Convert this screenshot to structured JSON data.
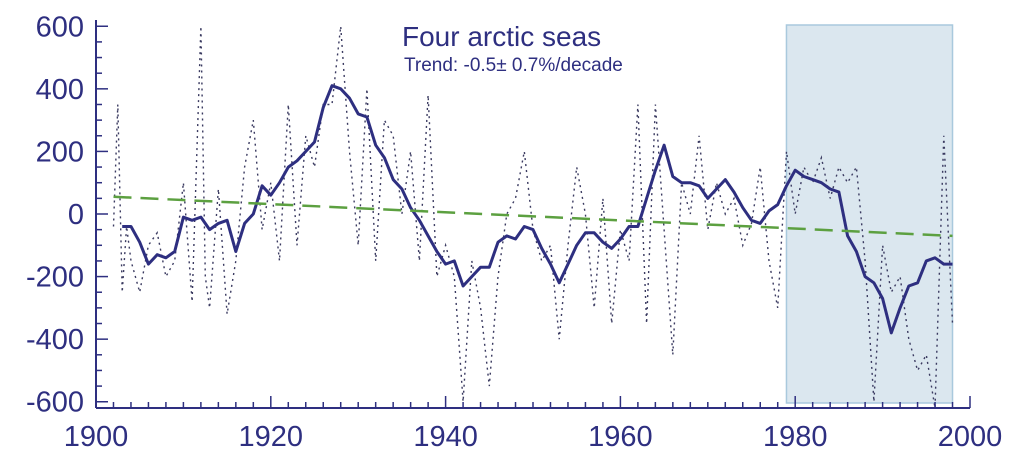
{
  "chart_data": {
    "type": "line",
    "title": "Four arctic seas",
    "subtitle": "Trend: -0.5± 0.7%/decade",
    "xlabel": "",
    "ylabel": "",
    "xlim": [
      1900,
      2000
    ],
    "ylim": [
      -620,
      620
    ],
    "x_ticks": [
      1900,
      1920,
      1940,
      1960,
      1980,
      2000
    ],
    "x_tick_labels": [
      "1900",
      "1920",
      "1940",
      "1960",
      "1980",
      "2000"
    ],
    "y_ticks": [
      600,
      400,
      200,
      0,
      -200,
      -400,
      -600
    ],
    "y_tick_labels": [
      "600",
      "400",
      "200",
      "0",
      "-200",
      "-400",
      "-600"
    ],
    "grid": false,
    "highlight_region": {
      "x": [
        1979,
        1998
      ],
      "color": "#dbe7ef"
    },
    "colors": {
      "axis": "#2e2f80",
      "smoothed": "#2e2f80",
      "annual": "#3a3a60",
      "trend": "#5ca040"
    },
    "series": [
      {
        "style": "dotted",
        "x": [
          1902,
          1902.5,
          1903,
          1903.5,
          1904,
          1905,
          1906,
          1907,
          1908,
          1909,
          1910,
          1911,
          1912,
          1912.5,
          1913,
          1914,
          1915,
          1916,
          1917,
          1918,
          1919,
          1920,
          1921,
          1922,
          1923,
          1924,
          1925,
          1926,
          1927,
          1928,
          1929,
          1930,
          1931,
          1932,
          1933,
          1934,
          1935,
          1936,
          1937,
          1938,
          1939,
          1940,
          1941,
          1942,
          1943,
          1944,
          1945,
          1946,
          1947,
          1948,
          1949,
          1950,
          1951,
          1952,
          1953,
          1954,
          1955,
          1956,
          1957,
          1958,
          1959,
          1960,
          1961,
          1962,
          1963,
          1964,
          1965,
          1966,
          1967,
          1968,
          1969,
          1970,
          1971,
          1972,
          1973,
          1974,
          1975,
          1976,
          1977,
          1978,
          1979,
          1980,
          1981,
          1982,
          1983,
          1984,
          1985,
          1986,
          1987,
          1988,
          1989,
          1990,
          1991,
          1992,
          1993,
          1994,
          1995,
          1996,
          1997,
          1998
        ],
        "values": [
          -40,
          350,
          -250,
          -40,
          -150,
          -250,
          -100,
          -60,
          -200,
          -150,
          100,
          -280,
          600,
          -200,
          -300,
          80,
          -320,
          -150,
          150,
          300,
          -50,
          100,
          -150,
          350,
          -100,
          250,
          150,
          350,
          350,
          600,
          200,
          -100,
          400,
          -150,
          300,
          250,
          0,
          200,
          -150,
          380,
          -200,
          -100,
          -200,
          -600,
          -150,
          -300,
          -550,
          -200,
          0,
          50,
          200,
          -50,
          -150,
          -100,
          -400,
          -100,
          150,
          0,
          -300,
          50,
          -350,
          -50,
          -150,
          350,
          -350,
          350,
          -50,
          -450,
          100,
          0,
          250,
          -50,
          100,
          0,
          50,
          -100,
          -30,
          150,
          -150,
          -300,
          200,
          0,
          150,
          100,
          180,
          50,
          150,
          100,
          150,
          -150,
          -600,
          -100,
          -250,
          -200,
          -400,
          -500,
          -450,
          -650,
          250,
          -350
        ]
      },
      {
        "style": "solid",
        "x": [
          1903,
          1904,
          1905,
          1906,
          1907,
          1908,
          1909,
          1910,
          1911,
          1912,
          1913,
          1914,
          1915,
          1916,
          1917,
          1918,
          1919,
          1920,
          1921,
          1922,
          1923,
          1924,
          1925,
          1926,
          1927,
          1928,
          1929,
          1930,
          1931,
          1932,
          1933,
          1934,
          1935,
          1936,
          1937,
          1938,
          1939,
          1940,
          1941,
          1942,
          1943,
          1944,
          1945,
          1946,
          1947,
          1948,
          1949,
          1950,
          1951,
          1952,
          1953,
          1954,
          1955,
          1956,
          1957,
          1958,
          1959,
          1960,
          1961,
          1962,
          1963,
          1964,
          1965,
          1966,
          1967,
          1968,
          1969,
          1970,
          1971,
          1972,
          1973,
          1974,
          1975,
          1976,
          1977,
          1978,
          1979,
          1980,
          1981,
          1982,
          1983,
          1984,
          1985,
          1986,
          1987,
          1988,
          1989,
          1990,
          1991,
          1992,
          1993,
          1994,
          1995,
          1996,
          1997,
          1998
        ],
        "values": [
          -40,
          -40,
          -90,
          -160,
          -130,
          -140,
          -120,
          -10,
          -20,
          -10,
          -50,
          -30,
          -20,
          -120,
          -30,
          0,
          90,
          60,
          100,
          150,
          170,
          200,
          230,
          340,
          410,
          400,
          370,
          320,
          310,
          220,
          180,
          110,
          80,
          20,
          -20,
          -70,
          -120,
          -160,
          -150,
          -230,
          -200,
          -170,
          -170,
          -90,
          -70,
          -80,
          -40,
          -50,
          -110,
          -160,
          -220,
          -160,
          -100,
          -60,
          -60,
          -90,
          -110,
          -80,
          -40,
          -40,
          50,
          140,
          220,
          120,
          100,
          100,
          90,
          50,
          80,
          110,
          70,
          20,
          -20,
          -30,
          10,
          30,
          90,
          140,
          120,
          110,
          100,
          80,
          70,
          -70,
          -120,
          -200,
          -220,
          -270,
          -380,
          -300,
          -230,
          -220,
          -150,
          -140,
          -160,
          -160
        ],
        "trim_start": 0,
        "trim_end": 0
      },
      {
        "style": "dashed",
        "x": [
          1902,
          1998
        ],
        "values": [
          55,
          -70
        ]
      }
    ]
  }
}
